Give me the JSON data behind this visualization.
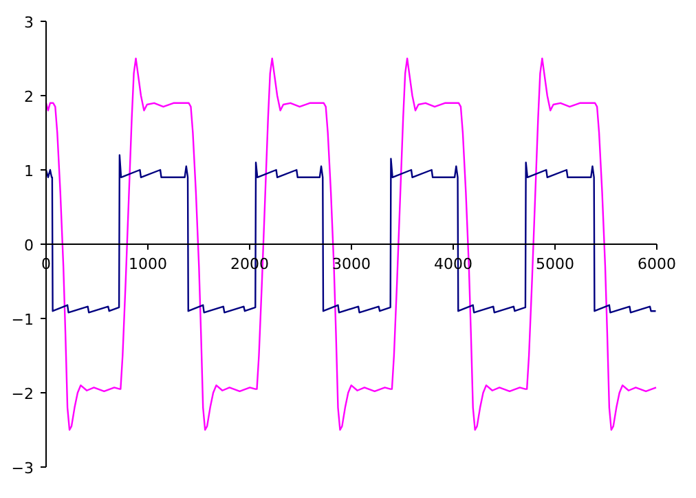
{
  "chart_data": {
    "type": "line",
    "xlim": [
      0,
      6000
    ],
    "ylim": [
      -3,
      3
    ],
    "xticks": [
      0,
      1000,
      2000,
      3000,
      4000,
      5000,
      6000
    ],
    "yticks": [
      -3,
      -2,
      -1,
      0,
      1,
      2,
      3
    ],
    "grid": false,
    "marker": "none",
    "line_style": "solid",
    "series": [
      {
        "color": "#ff00ff",
        "x": [
          0,
          20,
          40,
          60,
          70,
          90,
          110,
          140,
          170,
          190,
          210,
          230,
          250,
          280,
          310,
          340,
          400,
          470,
          570,
          670,
          725,
          732,
          752,
          782,
          812,
          842,
          862,
          882,
          902,
          932,
          962,
          992,
          1062,
          1152,
          1252,
          1372,
          1402,
          1422,
          1442,
          1472,
          1502,
          1522,
          1542,
          1562,
          1582,
          1612,
          1642,
          1672,
          1732,
          1802,
          1902,
          2002,
          2057,
          2071,
          2091,
          2121,
          2151,
          2181,
          2201,
          2221,
          2241,
          2271,
          2301,
          2331,
          2401,
          2491,
          2591,
          2711,
          2728,
          2748,
          2768,
          2798,
          2828,
          2848,
          2868,
          2888,
          2908,
          2938,
          2968,
          2998,
          3058,
          3128,
          3228,
          3328,
          3383,
          3398,
          3418,
          3448,
          3478,
          3508,
          3528,
          3548,
          3568,
          3598,
          3628,
          3658,
          3728,
          3818,
          3918,
          4038,
          4054,
          4074,
          4094,
          4124,
          4154,
          4174,
          4194,
          4214,
          4234,
          4264,
          4294,
          4324,
          4384,
          4454,
          4554,
          4654,
          4709,
          4724,
          4744,
          4774,
          4804,
          4834,
          4854,
          4874,
          4894,
          4924,
          4954,
          4984,
          5054,
          5144,
          5244,
          5364,
          5393,
          5413,
          5433,
          5463,
          5493,
          5513,
          5533,
          5553,
          5573,
          5603,
          5633,
          5663,
          5723,
          5793,
          5893,
          5993
        ],
        "values": [
          1.9,
          1.8,
          1.9,
          1.9,
          1.9,
          1.85,
          1.5,
          0.7,
          -0.3,
          -1.2,
          -2.2,
          -2.5,
          -2.45,
          -2.2,
          -2.0,
          -1.9,
          -1.97,
          -1.93,
          -1.98,
          -1.93,
          -1.95,
          -1.95,
          -1.5,
          -0.5,
          0.6,
          1.7,
          2.3,
          2.5,
          2.3,
          2.0,
          1.8,
          1.88,
          1.9,
          1.85,
          1.9,
          1.9,
          1.9,
          1.85,
          1.5,
          0.7,
          -0.3,
          -1.2,
          -2.2,
          -2.5,
          -2.45,
          -2.2,
          -2.0,
          -1.9,
          -1.97,
          -1.93,
          -1.98,
          -1.93,
          -1.95,
          -1.95,
          -1.5,
          -0.5,
          0.6,
          1.7,
          2.3,
          2.5,
          2.3,
          2.0,
          1.8,
          1.88,
          1.9,
          1.85,
          1.9,
          1.9,
          1.9,
          1.85,
          1.5,
          0.7,
          -0.3,
          -1.2,
          -2.2,
          -2.5,
          -2.45,
          -2.2,
          -2.0,
          -1.9,
          -1.97,
          -1.93,
          -1.98,
          -1.93,
          -1.95,
          -1.95,
          -1.5,
          -0.5,
          0.6,
          1.7,
          2.3,
          2.5,
          2.3,
          2.0,
          1.8,
          1.88,
          1.9,
          1.85,
          1.9,
          1.9,
          1.9,
          1.85,
          1.5,
          0.7,
          -0.3,
          -1.2,
          -2.2,
          -2.5,
          -2.45,
          -2.2,
          -2.0,
          -1.9,
          -1.97,
          -1.93,
          -1.98,
          -1.93,
          -1.95,
          -1.95,
          -1.5,
          -0.5,
          0.6,
          1.7,
          2.3,
          2.5,
          2.3,
          2.0,
          1.8,
          1.88,
          1.9,
          1.85,
          1.9,
          1.9,
          1.9,
          1.85,
          1.5,
          0.7,
          -0.3,
          -1.2,
          -2.2,
          -2.5,
          -2.45,
          -2.2,
          -2.0,
          -1.9,
          -1.97,
          -1.93,
          -1.98,
          -1.93
        ]
      },
      {
        "color": "#000080",
        "x": [
          0,
          20,
          40,
          55,
          60,
          65,
          210,
          220,
          410,
          420,
          610,
          620,
          717,
          722,
          737,
          922,
          932,
          1122,
          1132,
          1362,
          1377,
          1392,
          1397,
          1542,
          1552,
          1742,
          1752,
          1942,
          1952,
          2056,
          2061,
          2076,
          2261,
          2271,
          2461,
          2471,
          2688,
          2703,
          2718,
          2723,
          2868,
          2878,
          3068,
          3078,
          3268,
          3278,
          3383,
          3388,
          3403,
          3588,
          3598,
          3788,
          3798,
          4014,
          4029,
          4044,
          4049,
          4194,
          4204,
          4394,
          4404,
          4594,
          4604,
          4709,
          4714,
          4729,
          4914,
          4924,
          5114,
          5124,
          5353,
          5368,
          5383,
          5388,
          5533,
          5543,
          5733,
          5743,
          5933,
          5943,
          5990
        ],
        "values": [
          1.0,
          0.9,
          1.0,
          0.9,
          0.9,
          -0.9,
          -0.82,
          -0.92,
          -0.84,
          -0.92,
          -0.84,
          -0.9,
          -0.85,
          1.2,
          0.9,
          1.0,
          0.9,
          1.0,
          0.9,
          0.9,
          1.05,
          0.9,
          -0.9,
          -0.82,
          -0.92,
          -0.84,
          -0.92,
          -0.84,
          -0.9,
          -0.85,
          1.1,
          0.9,
          1.0,
          0.9,
          1.0,
          0.9,
          0.9,
          1.05,
          0.9,
          -0.9,
          -0.82,
          -0.92,
          -0.84,
          -0.92,
          -0.84,
          -0.9,
          -0.85,
          1.15,
          0.9,
          1.0,
          0.9,
          1.0,
          0.9,
          0.9,
          1.05,
          0.9,
          -0.9,
          -0.82,
          -0.92,
          -0.84,
          -0.92,
          -0.84,
          -0.9,
          -0.85,
          1.1,
          0.9,
          1.0,
          0.9,
          1.0,
          0.9,
          0.9,
          1.05,
          0.9,
          -0.9,
          -0.82,
          -0.92,
          -0.84,
          -0.92,
          -0.84,
          -0.9,
          -0.9
        ]
      }
    ]
  }
}
